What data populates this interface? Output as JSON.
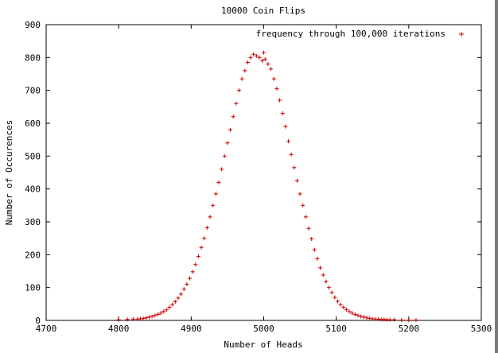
{
  "chart_data": {
    "type": "scatter",
    "title": "10000 Coin Flips",
    "xlabel": "Number of Heads",
    "ylabel": "Number of Occurences",
    "xlim": [
      4700,
      5300
    ],
    "ylim": [
      0,
      900
    ],
    "xticks": [
      "4700",
      "4800",
      "4900",
      "5000",
      "5100",
      "5200",
      "5300"
    ],
    "yticks": [
      "0",
      "100",
      "200",
      "300",
      "400",
      "500",
      "600",
      "700",
      "800",
      "900"
    ],
    "grid": false,
    "legend_position": "top-right",
    "marker": "+",
    "series": [
      {
        "name": "frequency through 100,000 iterations",
        "color": "#cc0000",
        "x": [
          4800,
          4812,
          4820,
          4826,
          4830,
          4834,
          4838,
          4842,
          4846,
          4850,
          4854,
          4858,
          4862,
          4866,
          4870,
          4874,
          4878,
          4882,
          4886,
          4890,
          4894,
          4898,
          4902,
          4906,
          4910,
          4914,
          4918,
          4922,
          4926,
          4930,
          4934,
          4938,
          4942,
          4946,
          4950,
          4954,
          4958,
          4962,
          4966,
          4970,
          4974,
          4978,
          4982,
          4986,
          4990,
          4994,
          4998,
          5000,
          5002,
          5006,
          5010,
          5014,
          5018,
          5022,
          5026,
          5030,
          5034,
          5038,
          5042,
          5046,
          5050,
          5054,
          5058,
          5062,
          5066,
          5070,
          5074,
          5078,
          5082,
          5086,
          5090,
          5094,
          5098,
          5102,
          5106,
          5110,
          5114,
          5118,
          5122,
          5126,
          5130,
          5134,
          5138,
          5142,
          5146,
          5150,
          5154,
          5158,
          5162,
          5166,
          5170,
          5174,
          5180,
          5190,
          5200,
          5210
        ],
        "y": [
          2,
          3,
          4,
          4,
          5,
          6,
          8,
          10,
          12,
          15,
          18,
          22,
          27,
          32,
          40,
          48,
          57,
          68,
          80,
          95,
          110,
          128,
          148,
          170,
          195,
          222,
          250,
          282,
          315,
          350,
          385,
          420,
          460,
          500,
          540,
          580,
          620,
          660,
          700,
          735,
          760,
          785,
          800,
          810,
          805,
          800,
          790,
          815,
          795,
          780,
          765,
          735,
          705,
          670,
          630,
          590,
          545,
          505,
          465,
          425,
          385,
          350,
          315,
          280,
          248,
          215,
          188,
          160,
          138,
          118,
          100,
          85,
          70,
          58,
          48,
          40,
          33,
          27,
          22,
          18,
          15,
          12,
          10,
          8,
          6,
          5,
          4,
          4,
          3,
          3,
          2,
          2,
          2,
          1,
          1,
          1
        ]
      }
    ]
  }
}
